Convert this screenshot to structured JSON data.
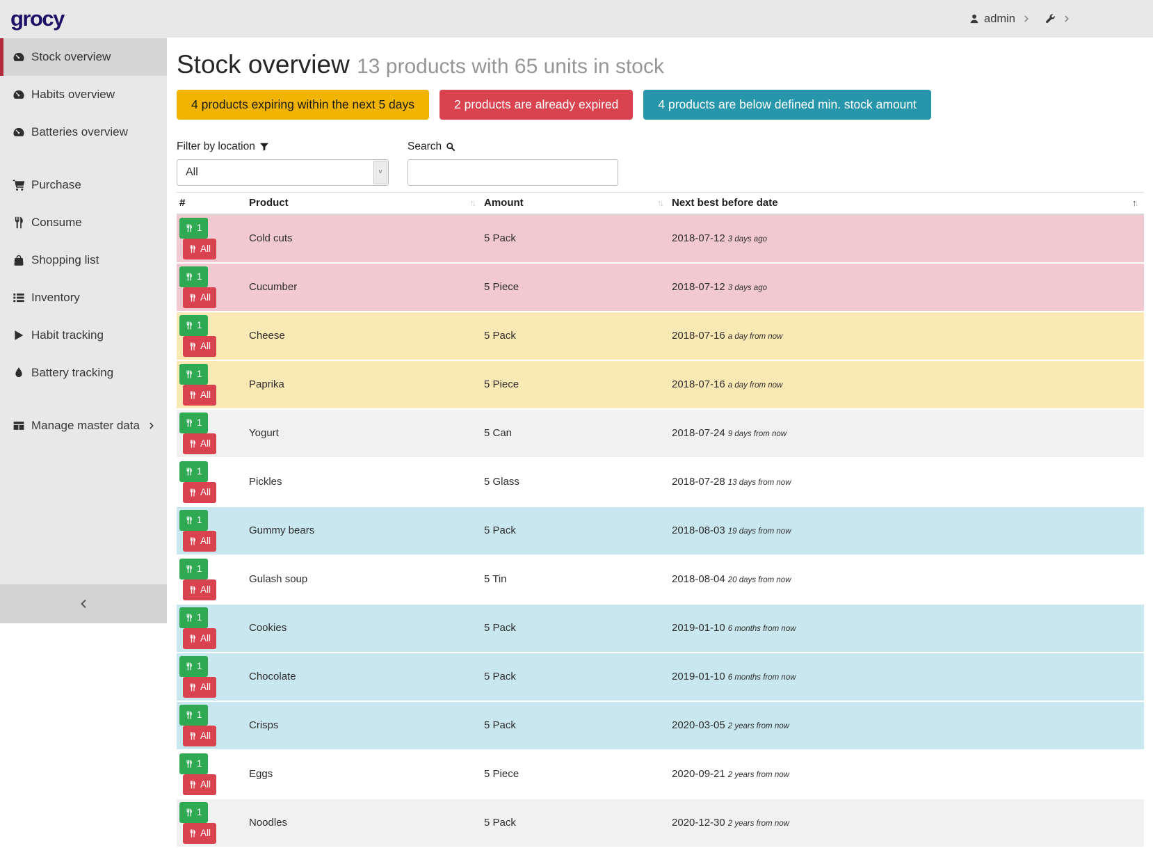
{
  "app": {
    "logo": "grocy"
  },
  "topbar": {
    "user": "admin",
    "icons": [
      "user-icon",
      "chevron-right-icon",
      "wrench-icon",
      "chevron-right-icon"
    ]
  },
  "sidebar": {
    "items": [
      {
        "label": "Stock overview",
        "icon": "tachometer-icon",
        "active": true
      },
      {
        "label": "Habits overview",
        "icon": "tachometer-icon"
      },
      {
        "label": "Batteries overview",
        "icon": "tachometer-icon",
        "gap_after": true
      },
      {
        "label": "Purchase",
        "icon": "cart-icon"
      },
      {
        "label": "Consume",
        "icon": "utensils-icon"
      },
      {
        "label": "Shopping list",
        "icon": "shopping-bag-icon"
      },
      {
        "label": "Inventory",
        "icon": "list-icon"
      },
      {
        "label": "Habit tracking",
        "icon": "play-icon"
      },
      {
        "label": "Battery tracking",
        "icon": "tint-icon",
        "gap_after": true
      },
      {
        "label": "Manage master data",
        "icon": "table-icon",
        "chevron": true
      }
    ],
    "collapse_icon": "chevron-left-icon"
  },
  "header": {
    "title": "Stock overview",
    "subtitle": "13 products with 65 units in stock"
  },
  "alerts": [
    {
      "label": "4 products expiring within the next 5 days",
      "color": "#f2b402",
      "text_color": "#1a1a1a"
    },
    {
      "label": "2 products are already expired",
      "color": "#d8434f",
      "text_color": "#ffffff"
    },
    {
      "label": "4 products are below defined min. stock amount",
      "color": "#2796ab",
      "text_color": "#ffffff"
    }
  ],
  "filters": {
    "location_label": "Filter by location",
    "location_icon": "filter-icon",
    "location_value": "All",
    "search_label": "Search",
    "search_icon": "search-icon",
    "search_value": ""
  },
  "table": {
    "columns": [
      "#",
      "Product",
      "Amount",
      "Next best before date"
    ],
    "sort_column": "Next best before date",
    "sort_direction": "asc",
    "row_buttons": {
      "consume_one": "1",
      "consume_all": "All",
      "icon": "utensils-icon"
    },
    "rows": [
      {
        "product": "Cold cuts",
        "amount": "5 Pack",
        "date": "2018-07-12",
        "timeago": "3 days ago",
        "status": "expired"
      },
      {
        "product": "Cucumber",
        "amount": "5 Piece",
        "date": "2018-07-12",
        "timeago": "3 days ago",
        "status": "expired"
      },
      {
        "product": "Cheese",
        "amount": "5 Pack",
        "date": "2018-07-16",
        "timeago": "a day from now",
        "status": "expiring"
      },
      {
        "product": "Paprika",
        "amount": "5 Piece",
        "date": "2018-07-16",
        "timeago": "a day from now",
        "status": "expiring"
      },
      {
        "product": "Yogurt",
        "amount": "5 Can",
        "date": "2018-07-24",
        "timeago": "9 days from now",
        "status": "none"
      },
      {
        "product": "Pickles",
        "amount": "5 Glass",
        "date": "2018-07-28",
        "timeago": "13 days from now",
        "status": "none"
      },
      {
        "product": "Gummy bears",
        "amount": "5 Pack",
        "date": "2018-08-03",
        "timeago": "19 days from now",
        "status": "below_min"
      },
      {
        "product": "Gulash soup",
        "amount": "5 Tin",
        "date": "2018-08-04",
        "timeago": "20 days from now",
        "status": "none"
      },
      {
        "product": "Cookies",
        "amount": "5 Pack",
        "date": "2019-01-10",
        "timeago": "6 months from now",
        "status": "below_min"
      },
      {
        "product": "Chocolate",
        "amount": "5 Pack",
        "date": "2019-01-10",
        "timeago": "6 months from now",
        "status": "below_min"
      },
      {
        "product": "Crisps",
        "amount": "5 Pack",
        "date": "2020-03-05",
        "timeago": "2 years from now",
        "status": "below_min"
      },
      {
        "product": "Eggs",
        "amount": "5 Piece",
        "date": "2020-09-21",
        "timeago": "2 years from now",
        "status": "none"
      },
      {
        "product": "Noodles",
        "amount": "5 Pack",
        "date": "2020-12-30",
        "timeago": "2 years from now",
        "status": "none"
      }
    ]
  },
  "colors": {
    "topbar_bg": "#e8e8e8",
    "sidebar_active_bg": "#d5d5d5",
    "sidebar_active_border": "#b02a3c",
    "logo": "#1c1166",
    "row_expired_bg": "#f2c9d0",
    "row_expiring_bg": "#fae9b5",
    "row_below_min_bg": "#c8e7ef",
    "row_stripe_bg": "#f1f1f1",
    "consume_one_btn": "#2fa952",
    "consume_all_btn": "#d9434f"
  }
}
